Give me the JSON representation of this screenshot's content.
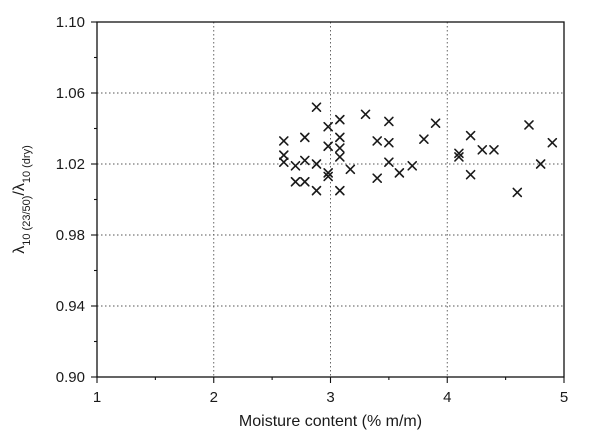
{
  "chart_data": {
    "type": "scatter",
    "title": "",
    "xlabel": "Moisture content (% m/m)",
    "ylabel": {
      "lambda1": "λ",
      "sub1": "10 (23/50)",
      "slash": "/",
      "lambda2": "λ",
      "sub2": "10 (dry)"
    },
    "xlim": [
      1,
      5
    ],
    "ylim": [
      0.9,
      1.1
    ],
    "x_ticks": [
      1,
      2,
      3,
      4,
      5
    ],
    "x_tick_labels": [
      "1",
      "2",
      "3",
      "4",
      "5"
    ],
    "y_ticks": [
      0.9,
      0.94,
      0.98,
      1.02,
      1.06,
      1.1
    ],
    "y_tick_labels": [
      "0.90",
      "0.94",
      "0.98",
      "1.02",
      "1.06",
      "1.10"
    ],
    "grid": true,
    "marker": "x",
    "points": [
      {
        "x": 2.6,
        "y": 1.033
      },
      {
        "x": 2.6,
        "y": 1.025
      },
      {
        "x": 2.6,
        "y": 1.021
      },
      {
        "x": 2.7,
        "y": 1.019
      },
      {
        "x": 2.7,
        "y": 1.01
      },
      {
        "x": 2.78,
        "y": 1.035
      },
      {
        "x": 2.78,
        "y": 1.022
      },
      {
        "x": 2.78,
        "y": 1.01
      },
      {
        "x": 2.88,
        "y": 1.052
      },
      {
        "x": 2.88,
        "y": 1.02
      },
      {
        "x": 2.88,
        "y": 1.005
      },
      {
        "x": 2.98,
        "y": 1.041
      },
      {
        "x": 2.98,
        "y": 1.03
      },
      {
        "x": 2.98,
        "y": 1.015
      },
      {
        "x": 2.98,
        "y": 1.013
      },
      {
        "x": 3.08,
        "y": 1.045
      },
      {
        "x": 3.08,
        "y": 1.035
      },
      {
        "x": 3.08,
        "y": 1.029
      },
      {
        "x": 3.08,
        "y": 1.024
      },
      {
        "x": 3.08,
        "y": 1.005
      },
      {
        "x": 3.17,
        "y": 1.017
      },
      {
        "x": 3.3,
        "y": 1.048
      },
      {
        "x": 3.4,
        "y": 1.033
      },
      {
        "x": 3.4,
        "y": 1.012
      },
      {
        "x": 3.5,
        "y": 1.044
      },
      {
        "x": 3.5,
        "y": 1.032
      },
      {
        "x": 3.5,
        "y": 1.021
      },
      {
        "x": 3.59,
        "y": 1.015
      },
      {
        "x": 3.7,
        "y": 1.019
      },
      {
        "x": 3.8,
        "y": 1.034
      },
      {
        "x": 3.9,
        "y": 1.043
      },
      {
        "x": 4.1,
        "y": 1.026
      },
      {
        "x": 4.1,
        "y": 1.024
      },
      {
        "x": 4.2,
        "y": 1.036
      },
      {
        "x": 4.2,
        "y": 1.014
      },
      {
        "x": 4.3,
        "y": 1.028
      },
      {
        "x": 4.4,
        "y": 1.028
      },
      {
        "x": 4.6,
        "y": 1.004
      },
      {
        "x": 4.7,
        "y": 1.042
      },
      {
        "x": 4.8,
        "y": 1.02
      },
      {
        "x": 4.9,
        "y": 1.032
      }
    ]
  }
}
